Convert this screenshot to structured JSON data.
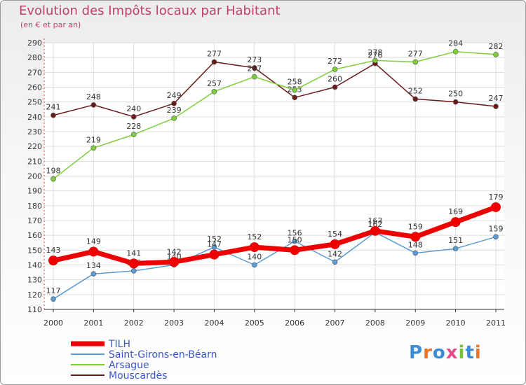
{
  "header": {
    "title": "Evolution des Impôts locaux par Habitant",
    "subtitle": "(en € et par an)"
  },
  "logo": {
    "letters": [
      "P",
      "r",
      "o",
      "x",
      "i",
      "t",
      "i"
    ],
    "text": "Proxiti"
  },
  "chart_data": {
    "type": "line",
    "title": "Evolution des Impôts locaux par Habitant",
    "subtitle": "(en € et par an)",
    "xlabel": "",
    "ylabel": "",
    "x": [
      "2000",
      "2001",
      "2002",
      "2003",
      "2004",
      "2005",
      "2006",
      "2007",
      "2008",
      "2009",
      "2010",
      "2011"
    ],
    "ylim": [
      110,
      290
    ],
    "yticks": [
      110,
      120,
      130,
      140,
      150,
      160,
      170,
      180,
      190,
      200,
      210,
      220,
      230,
      240,
      250,
      260,
      270,
      280,
      290
    ],
    "grid": true,
    "legend_position": "bottom-left",
    "series": [
      {
        "name": "TILH",
        "color": "#ee0000",
        "emphasis": "thick",
        "values": [
          143,
          149,
          141,
          142,
          147,
          152,
          150,
          154,
          163,
          159,
          169,
          179
        ],
        "labels": [
          "143",
          "149",
          "141",
          "142",
          "147",
          "152",
          "150",
          "154",
          "163",
          "159",
          "169",
          "179"
        ]
      },
      {
        "name": "Saint-Girons-en-Béarn",
        "color": "#5b9bd5",
        "values": [
          117,
          134,
          136,
          140,
          152,
          140,
          156,
          142,
          162,
          148,
          151,
          159
        ],
        "labels": [
          "117",
          "134",
          "136",
          "140",
          "152",
          "140",
          "156",
          "142",
          "162",
          "148",
          "151",
          "159"
        ]
      },
      {
        "name": "Arsague",
        "color": "#7ecf3a",
        "values": [
          198,
          219,
          228,
          239,
          257,
          267,
          258,
          272,
          278,
          277,
          284,
          282
        ],
        "labels": [
          "198",
          "219",
          "228",
          "239",
          "257",
          "267",
          "258",
          "272",
          "278",
          "277",
          "284",
          "282"
        ]
      },
      {
        "name": "Mouscardès",
        "color": "#6b1a1a",
        "values": [
          241,
          248,
          240,
          249,
          277,
          273,
          253,
          260,
          276,
          252,
          250,
          247
        ],
        "labels": [
          "241",
          "248",
          "240",
          "249",
          "277",
          "273",
          "253",
          "260",
          "276",
          "252",
          "250",
          "247"
        ]
      }
    ]
  }
}
